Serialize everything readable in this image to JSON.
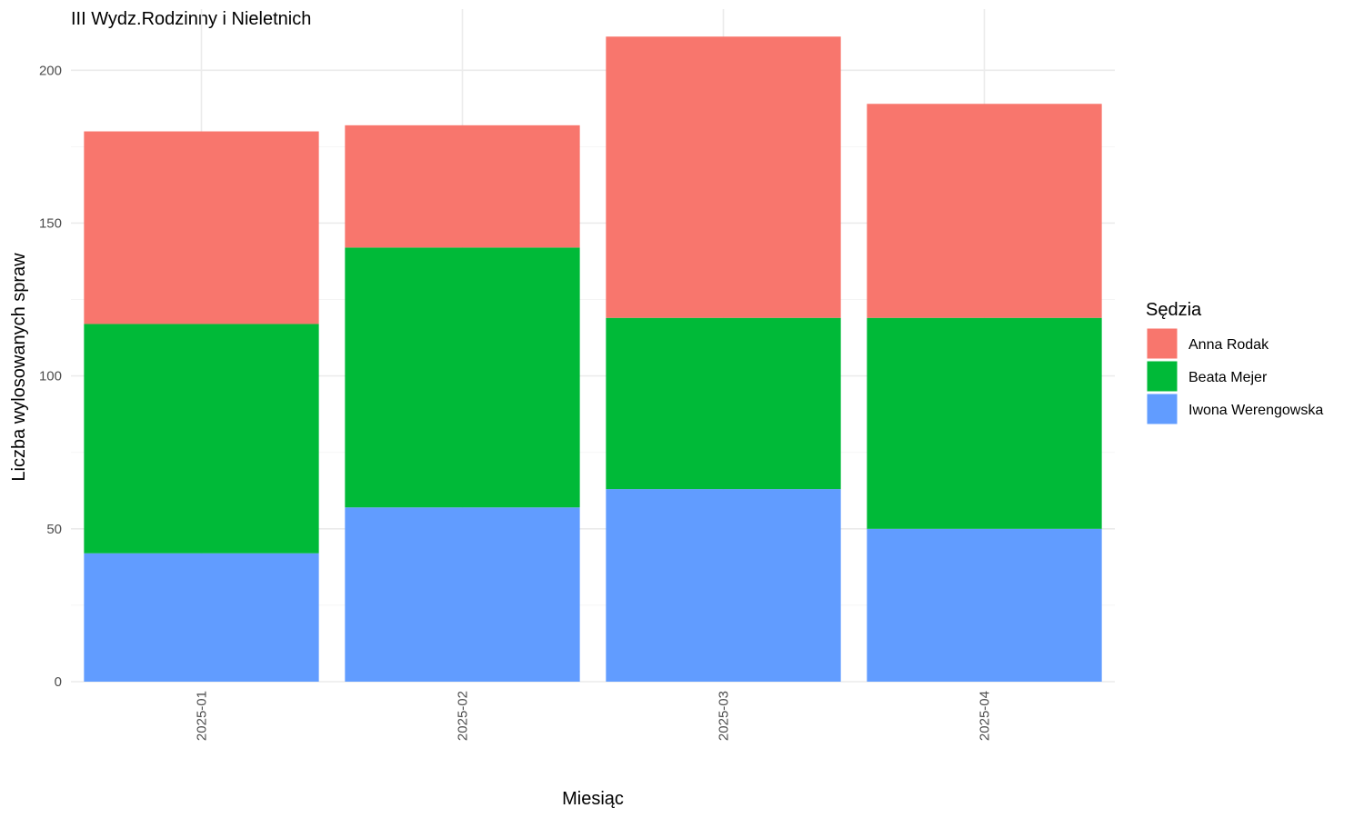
{
  "chart_data": {
    "type": "bar",
    "stacked": true,
    "title": "III Wydz.Rodzinny i Nieletnich",
    "xlabel": "Miesiąc",
    "ylabel": "Liczba wylosowanych spraw",
    "categories": [
      "2025-01",
      "2025-02",
      "2025-03",
      "2025-04"
    ],
    "ylim": [
      0,
      220
    ],
    "yticks": [
      0,
      50,
      100,
      150,
      200
    ],
    "grid": true,
    "legend": {
      "title": "Sędzia",
      "position": "right"
    },
    "series": [
      {
        "name": "Iwona Werengowska",
        "color": "#619CFF",
        "values": [
          42,
          57,
          63,
          50
        ]
      },
      {
        "name": "Beata Mejer",
        "color": "#00BA38",
        "values": [
          75,
          85,
          56,
          69
        ]
      },
      {
        "name": "Anna Rodak",
        "color": "#F8766D",
        "values": [
          63,
          40,
          92,
          70
        ]
      }
    ],
    "legend_order": [
      "Anna Rodak",
      "Beata Mejer",
      "Iwona Werengowska"
    ]
  }
}
